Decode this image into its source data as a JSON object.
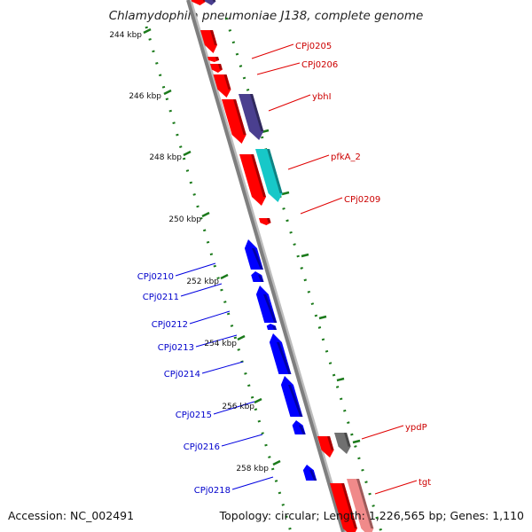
{
  "title": "Chlamydophila pneumoniae J138, complete genome",
  "footer": {
    "accession": "Accession: NC_002491",
    "topology": "Topology: circular; Length: 1,226,565 bp; Genes: 1,110"
  },
  "colors": {
    "forward": "#ff0000",
    "reverse": "#0000ff",
    "purple": "#4a3f8f",
    "teal": "#17c8c8",
    "gray": "#707070",
    "pink": "#f08a8a",
    "tick": "#1b7a1b"
  },
  "kbp_labels": [
    "244 kbp",
    "246 kbp",
    "248 kbp",
    "250 kbp",
    "252 kbp",
    "254 kbp",
    "256 kbp",
    "258 kbp"
  ],
  "forward_genes": [
    "CPj0205",
    "CPj0206",
    "ybhI",
    "pfkA_2",
    "CPj0209",
    "ypdP",
    "tgt"
  ],
  "reverse_genes": [
    "CPj0210",
    "CPj0211",
    "CPj0212",
    "CPj0213",
    "CPj0214",
    "CPj0215",
    "CPj0216",
    "CPj0218"
  ]
}
